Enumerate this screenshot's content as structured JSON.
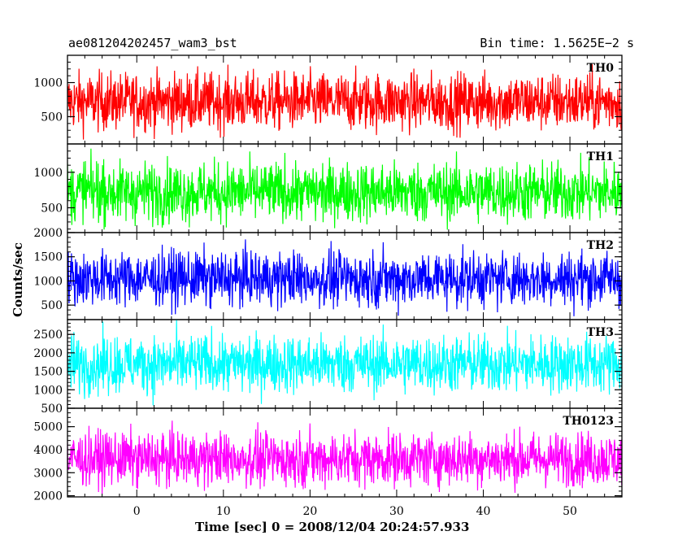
{
  "header": {
    "left_title": "ae081204202457_wam3_bst",
    "right_title": "Bin time: 1.5625E−2 s"
  },
  "axes": {
    "ylabel": "Counts/sec",
    "xlabel": "Time [sec] 0 = 2008/12/04 20:24:57.933"
  },
  "chart_data": {
    "type": "line",
    "xlim": [
      -8,
      56
    ],
    "x_ticks": [
      0,
      10,
      20,
      30,
      40,
      50
    ],
    "x_tick_labels": [
      "0",
      "10",
      "20",
      "30",
      "40",
      "50"
    ],
    "panels": [
      {
        "name": "TH0",
        "color": "#ff0000",
        "ylim": [
          100,
          1400
        ],
        "ticks": [
          500,
          1000
        ],
        "tick_labels": [
          "500",
          "1000"
        ],
        "median": 720,
        "spread": 420
      },
      {
        "name": "TH1",
        "color": "#00ff00",
        "ylim": [
          150,
          1400
        ],
        "ticks": [
          500,
          1000
        ],
        "tick_labels": [
          "500",
          "1000"
        ],
        "median": 720,
        "spread": 420
      },
      {
        "name": "TH2",
        "color": "#0000ff",
        "ylim": [
          200,
          2000
        ],
        "ticks": [
          500,
          1000,
          1500,
          2000
        ],
        "tick_labels": [
          "500",
          "1000",
          "1500",
          "2000"
        ],
        "median": 1050,
        "spread": 560
      },
      {
        "name": "TH3",
        "color": "#00ffff",
        "ylim": [
          500,
          2900
        ],
        "ticks": [
          500,
          1000,
          1500,
          2000,
          2500
        ],
        "tick_labels": [
          "500",
          "1000",
          "1500",
          "2000",
          "2500"
        ],
        "median": 1700,
        "spread": 780
      },
      {
        "name": "TH0123",
        "color": "#ff00ff",
        "ylim": [
          1950,
          5800
        ],
        "ticks": [
          2000,
          3000,
          4000,
          5000
        ],
        "tick_labels": [
          "2000",
          "3000",
          "4000",
          "5000"
        ],
        "median": 3600,
        "spread": 1150
      }
    ]
  }
}
